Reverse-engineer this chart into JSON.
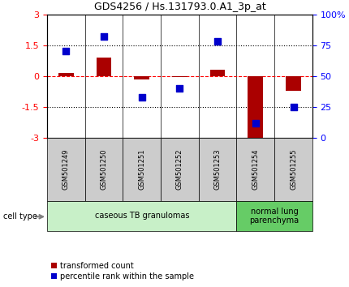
{
  "title": "GDS4256 / Hs.131793.0.A1_3p_at",
  "samples": [
    "GSM501249",
    "GSM501250",
    "GSM501251",
    "GSM501252",
    "GSM501253",
    "GSM501254",
    "GSM501255"
  ],
  "red_values": [
    0.15,
    0.9,
    -0.15,
    -0.05,
    0.3,
    -3.1,
    -0.7
  ],
  "blue_values": [
    70,
    82,
    33,
    40,
    78,
    12,
    25
  ],
  "ylim_left": [
    -3,
    3
  ],
  "ylim_right": [
    0,
    100
  ],
  "yticks_left": [
    -3,
    -1.5,
    0,
    1.5,
    3
  ],
  "yticks_right": [
    0,
    25,
    50,
    75,
    100
  ],
  "ytick_labels_left": [
    "-3",
    "-1.5",
    "0",
    "1.5",
    "3"
  ],
  "ytick_labels_right": [
    "0",
    "25",
    "50",
    "75",
    "100%"
  ],
  "cell_type_groups": [
    {
      "label": "caseous TB granulomas",
      "start": 0,
      "end": 4,
      "color": "#c8f0c8"
    },
    {
      "label": "normal lung\nparenchyma",
      "start": 5,
      "end": 6,
      "color": "#66cc66"
    }
  ],
  "red_bar_color": "#aa0000",
  "blue_square_color": "#0000cc",
  "legend_red_label": "transformed count",
  "legend_blue_label": "percentile rank within the sample",
  "cell_type_label": "cell type",
  "bar_width": 0.4,
  "bg_color": "#ffffff",
  "plot_bg_color": "#ffffff",
  "tick_area_color": "#cccccc",
  "title_fontsize": 9,
  "axis_fontsize": 8,
  "legend_fontsize": 7,
  "sample_label_fontsize": 6
}
